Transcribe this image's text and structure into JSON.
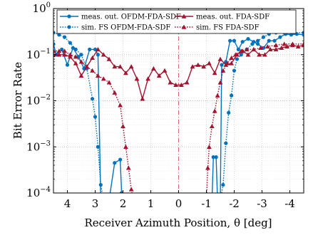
{
  "chart_data": {
    "type": "line",
    "xlabel": "Receiver Azimuth Position, θ [deg]",
    "ylabel": "Bit Error Rate",
    "x_range": [
      4.5,
      -4.5
    ],
    "y_range": [
      0.0001,
      1
    ],
    "y_scale": "log",
    "grid": true,
    "legend_position": "top",
    "x_ticks": [
      4,
      3,
      2,
      1,
      0,
      -1,
      -2,
      -3,
      -4
    ],
    "x_tick_labels": [
      "4",
      "3",
      "2",
      "1",
      "0",
      "-1",
      "-2",
      "-3",
      "-4"
    ],
    "y_ticks": [
      0.0001,
      0.001,
      0.01,
      0.1,
      1
    ],
    "y_tick_labels": [
      {
        "base": "10",
        "exp": "−4"
      },
      {
        "base": "10",
        "exp": "−3"
      },
      {
        "base": "10",
        "exp": "−2"
      },
      {
        "base": "10",
        "exp": "−1"
      },
      {
        "base": "10",
        "exp": "0"
      }
    ],
    "reference_line_x": 0,
    "series": [
      {
        "name": "meas. out. OFDM-FDA-SDF",
        "color": "#0072BD",
        "style": "solid",
        "marker": "circle",
        "points": [
          [
            4.5,
            0.17
          ],
          [
            4.4,
            0.1
          ],
          [
            4.2,
            0.13
          ],
          [
            4.0,
            0.06
          ],
          [
            3.8,
            0.14
          ],
          [
            3.6,
            0.09
          ],
          [
            3.4,
            0.05
          ],
          [
            3.2,
            0.13
          ],
          [
            3.0,
            0.13
          ],
          [
            2.9,
            0.1
          ],
          [
            2.8,
            7e-05
          ],
          [
            2.6,
            7e-05
          ],
          [
            2.5,
            7e-05
          ],
          [
            2.3,
            0.00045
          ],
          [
            2.1,
            0.00053
          ],
          [
            2.05,
            0.0001
          ],
          [
            2.0,
            7e-05
          ]
        ],
        "points_right": [
          [
            -1.2,
            7e-05
          ],
          [
            -1.25,
            0.0006
          ],
          [
            -1.35,
            0.0006
          ],
          [
            -1.4,
            7e-05
          ],
          [
            -1.5,
            7e-05
          ],
          [
            -1.55,
            0.06
          ],
          [
            -1.7,
            0.07
          ],
          [
            -1.85,
            0.2
          ],
          [
            -2.0,
            0.2
          ],
          [
            -2.15,
            0.13
          ],
          [
            -2.3,
            0.19
          ],
          [
            -2.5,
            0.22
          ],
          [
            -2.7,
            0.19
          ],
          [
            -2.85,
            0.17
          ],
          [
            -3.05,
            0.14
          ],
          [
            -3.25,
            0.2
          ],
          [
            -3.45,
            0.2
          ],
          [
            -3.65,
            0.24
          ],
          [
            -3.85,
            0.28
          ],
          [
            -4.05,
            0.27
          ],
          [
            -4.25,
            0.28
          ],
          [
            -4.5,
            0.27
          ]
        ]
      },
      {
        "name": "sim. FS OFDM-FDA-SDF",
        "color": "#0072BD",
        "style": "dotted",
        "marker": "circle",
        "points": [
          [
            4.5,
            0.3
          ],
          [
            4.3,
            0.27
          ],
          [
            4.1,
            0.24
          ],
          [
            3.9,
            0.18
          ],
          [
            3.7,
            0.13
          ],
          [
            3.5,
            0.1
          ],
          [
            3.3,
            0.05
          ],
          [
            3.1,
            0.011
          ],
          [
            3.0,
            0.0045
          ],
          [
            2.9,
            0.001
          ],
          [
            2.8,
            0.00015
          ],
          [
            2.7,
            7e-05
          ]
        ],
        "points_right": [
          [
            -1.5,
            7e-05
          ],
          [
            -1.6,
            0.00015
          ],
          [
            -1.7,
            0.0012
          ],
          [
            -1.8,
            0.0055
          ],
          [
            -1.9,
            0.013
          ],
          [
            -2.0,
            0.045
          ],
          [
            -2.1,
            0.08
          ],
          [
            -2.25,
            0.1
          ],
          [
            -2.45,
            0.13
          ],
          [
            -2.65,
            0.17
          ],
          [
            -2.85,
            0.2
          ],
          [
            -3.05,
            0.24
          ],
          [
            -3.25,
            0.28
          ],
          [
            -3.5,
            0.3
          ],
          [
            -3.8,
            0.3
          ],
          [
            -4.1,
            0.3
          ],
          [
            -4.5,
            0.3
          ]
        ]
      },
      {
        "name": "meas. out. FDA-SDF",
        "color": "#A2142F",
        "style": "solid",
        "marker": "triangle",
        "points": [
          [
            4.5,
            0.1
          ],
          [
            4.3,
            0.1
          ],
          [
            4.1,
            0.1
          ],
          [
            3.9,
            0.09
          ],
          [
            3.7,
            0.065
          ],
          [
            3.5,
            0.035
          ],
          [
            3.3,
            0.055
          ],
          [
            3.1,
            0.085
          ],
          [
            2.9,
            0.13
          ],
          [
            2.7,
            0.1
          ],
          [
            2.5,
            0.08
          ],
          [
            2.3,
            0.055
          ],
          [
            2.1,
            0.055
          ],
          [
            1.9,
            0.04
          ],
          [
            1.7,
            0.055
          ],
          [
            1.5,
            0.03
          ],
          [
            1.3,
            0.011
          ],
          [
            1.1,
            0.03
          ],
          [
            0.9,
            0.05
          ],
          [
            0.7,
            0.035
          ],
          [
            0.5,
            0.045
          ],
          [
            0.3,
            0.025
          ],
          [
            0.1,
            0.022
          ],
          [
            -0.1,
            0.022
          ],
          [
            -0.3,
            0.025
          ],
          [
            -0.5,
            0.055
          ],
          [
            -0.7,
            0.06
          ],
          [
            -0.9,
            0.055
          ],
          [
            -1.1,
            0.065
          ],
          [
            -1.3,
            0.04
          ],
          [
            -1.5,
            0.08
          ],
          [
            -1.7,
            0.06
          ],
          [
            -1.9,
            0.065
          ],
          [
            -2.1,
            0.1
          ],
          [
            -2.3,
            0.12
          ],
          [
            -2.5,
            0.1
          ],
          [
            -2.7,
            0.13
          ],
          [
            -2.9,
            0.1
          ],
          [
            -3.1,
            0.1
          ],
          [
            -3.3,
            0.13
          ],
          [
            -3.5,
            0.13
          ],
          [
            -3.7,
            0.14
          ],
          [
            -3.9,
            0.15
          ],
          [
            -4.1,
            0.16
          ],
          [
            -4.3,
            0.15
          ],
          [
            -4.5,
            0.16
          ]
        ]
      },
      {
        "name": "sim. FS FDA-SDF",
        "color": "#A2142F",
        "style": "dotted",
        "marker": "triangle",
        "points": [
          [
            4.5,
            0.12
          ],
          [
            4.3,
            0.12
          ],
          [
            4.1,
            0.12
          ],
          [
            3.9,
            0.1
          ],
          [
            3.7,
            0.09
          ],
          [
            3.5,
            0.07
          ],
          [
            3.3,
            0.055
          ],
          [
            3.1,
            0.045
          ],
          [
            2.9,
            0.035
          ],
          [
            2.7,
            0.03
          ],
          [
            2.5,
            0.025
          ],
          [
            2.3,
            0.015
          ],
          [
            2.1,
            0.008
          ],
          [
            2.0,
            0.0028
          ],
          [
            1.9,
            0.001
          ],
          [
            1.8,
            0.00035
          ],
          [
            1.7,
            0.00012
          ],
          [
            1.65,
            7e-05
          ]
        ],
        "points_right": [
          [
            -1.0,
            7e-05
          ],
          [
            -1.05,
            0.00035
          ],
          [
            -1.1,
            0.001
          ],
          [
            -1.2,
            0.0028
          ],
          [
            -1.3,
            0.006
          ],
          [
            -1.4,
            0.013
          ],
          [
            -1.5,
            0.025
          ],
          [
            -1.6,
            0.045
          ],
          [
            -1.75,
            0.065
          ],
          [
            -1.9,
            0.085
          ],
          [
            -2.05,
            0.1
          ],
          [
            -2.25,
            0.12
          ],
          [
            -2.45,
            0.13
          ],
          [
            -2.7,
            0.13
          ],
          [
            -2.95,
            0.14
          ],
          [
            -3.2,
            0.15
          ],
          [
            -3.5,
            0.16
          ],
          [
            -3.8,
            0.17
          ],
          [
            -4.1,
            0.17
          ],
          [
            -4.5,
            0.17
          ]
        ]
      }
    ]
  }
}
